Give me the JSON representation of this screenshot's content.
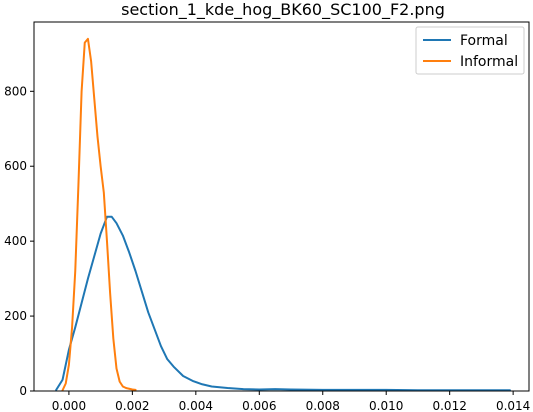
{
  "chart_data": {
    "type": "line",
    "title": "section_1_kde_hog_BK60_SC100_F2.png",
    "xlabel": "",
    "ylabel": "",
    "xlim": [
      -0.0011,
      0.0145
    ],
    "ylim": [
      0,
      985
    ],
    "x_ticks": [
      0.0,
      0.002,
      0.004,
      0.006,
      0.008,
      0.01,
      0.012,
      0.014
    ],
    "x_tick_labels": [
      "0.000",
      "0.002",
      "0.004",
      "0.006",
      "0.008",
      "0.010",
      "0.012",
      "0.014"
    ],
    "y_ticks": [
      0,
      200,
      400,
      600,
      800
    ],
    "y_tick_labels": [
      "0",
      "200",
      "400",
      "600",
      "800"
    ],
    "grid": false,
    "legend_position": "top-right",
    "series": [
      {
        "name": "Formal",
        "color": "#1f77b4",
        "x": [
          -0.0004,
          -0.0002,
          0.0,
          0.0002,
          0.0004,
          0.0006,
          0.0008,
          0.001,
          0.0012,
          0.00135,
          0.0015,
          0.0017,
          0.0019,
          0.0021,
          0.0023,
          0.0025,
          0.0027,
          0.0029,
          0.0031,
          0.0033,
          0.0036,
          0.0039,
          0.0042,
          0.0045,
          0.005,
          0.0055,
          0.006,
          0.0065,
          0.007,
          0.008,
          0.009,
          0.01,
          0.011,
          0.012,
          0.013,
          0.0139
        ],
        "y": [
          3,
          30,
          110,
          170,
          235,
          300,
          360,
          420,
          465,
          465,
          448,
          415,
          370,
          320,
          265,
          210,
          165,
          120,
          85,
          65,
          40,
          27,
          18,
          12,
          8,
          5,
          4,
          5,
          4,
          3,
          3,
          3,
          2,
          2,
          2,
          2
        ]
      },
      {
        "name": "Informal",
        "color": "#ff7f0e",
        "x": [
          -0.0002,
          -0.0001,
          0.0,
          0.0001,
          0.0002,
          0.0003,
          0.0004,
          0.0005,
          0.0006,
          0.0007,
          0.0008,
          0.0009,
          0.001,
          0.0011,
          0.0012,
          0.0013,
          0.0014,
          0.0015,
          0.0016,
          0.0017,
          0.0018,
          0.0019,
          0.002,
          0.0021
        ],
        "y": [
          2,
          20,
          70,
          170,
          320,
          550,
          800,
          930,
          940,
          880,
          780,
          680,
          600,
          530,
          400,
          260,
          140,
          60,
          25,
          12,
          8,
          6,
          4,
          3
        ]
      }
    ]
  }
}
